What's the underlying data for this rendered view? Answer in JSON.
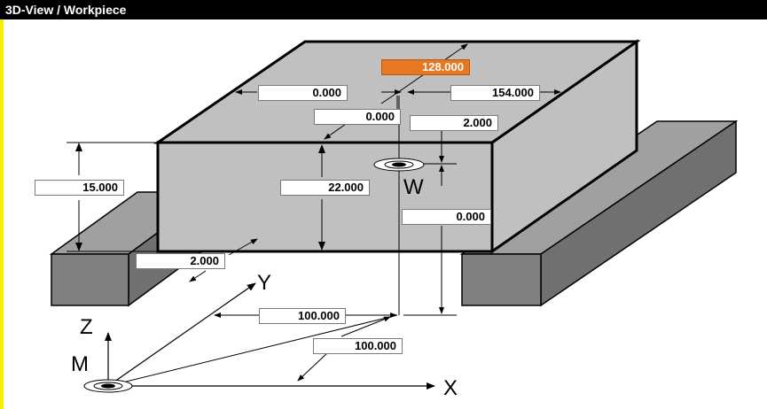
{
  "window": {
    "title": "3D-View / Workpiece"
  },
  "colors": {
    "active_field": "#e87722",
    "workpiece_top": "#c0c0c0",
    "rail": "#808080"
  },
  "axes": {
    "x": "X",
    "y": "Y",
    "z": "Z",
    "machine_origin": "M",
    "workpiece_origin": "W"
  },
  "fields": {
    "top_length": "128.000",
    "top_offset_left": "0.000",
    "top_width": "154.000",
    "top_offset_y": "0.000",
    "top_clearance": "2.000",
    "side_height": "15.000",
    "thickness": "22.000",
    "origin_z_offset": "0.000",
    "bottom_offset": "2.000",
    "origin_y": "100.000",
    "origin_x": "100.000"
  }
}
